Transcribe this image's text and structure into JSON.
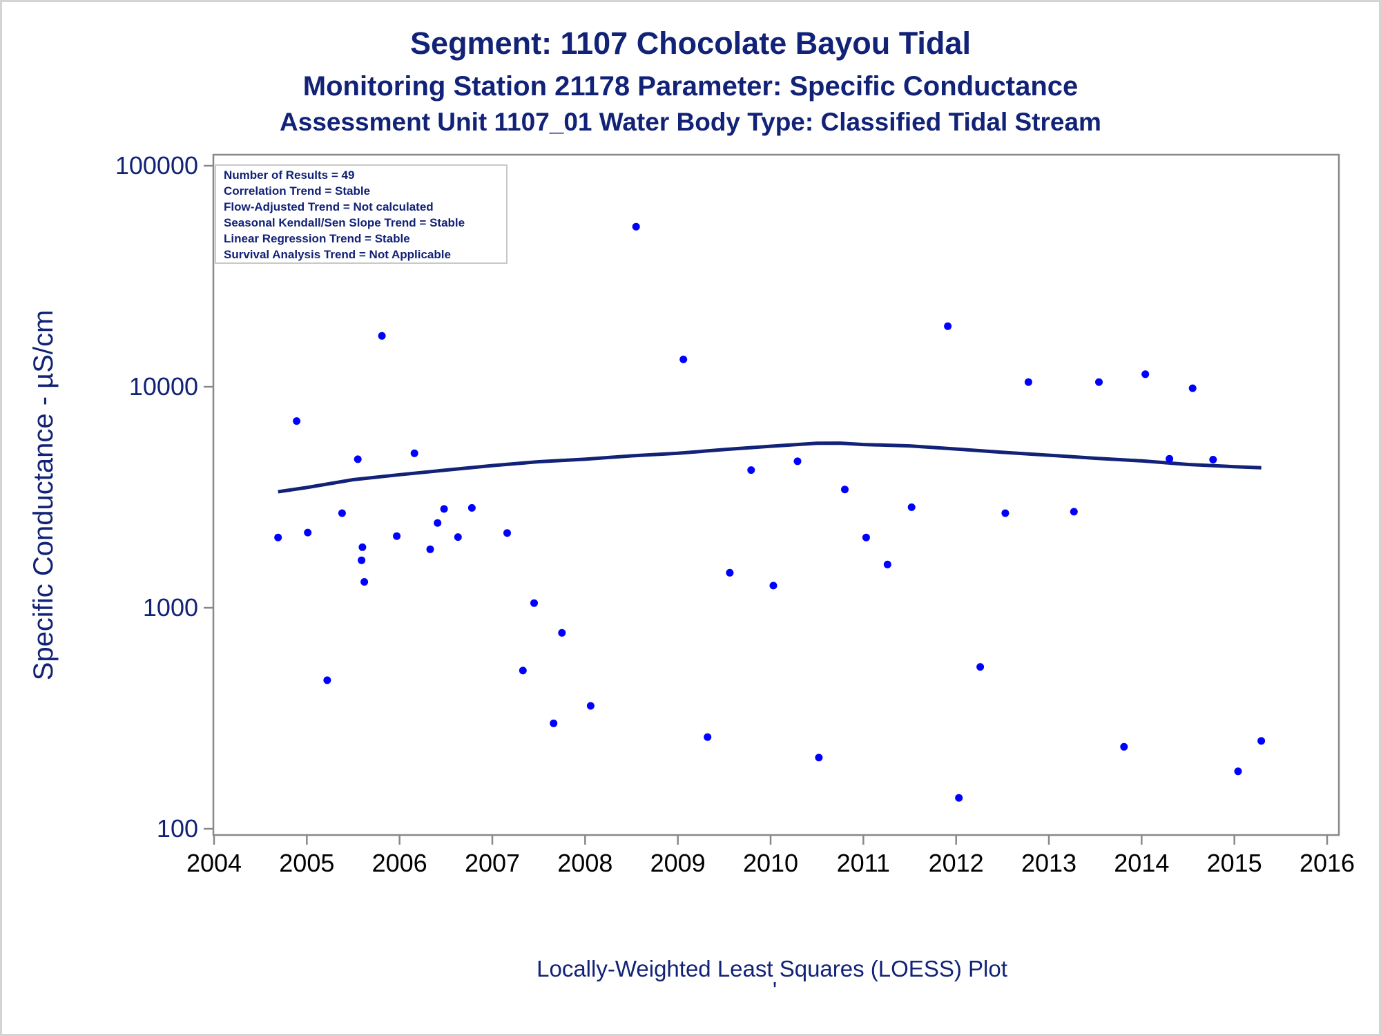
{
  "chart_data": {
    "type": "scatter",
    "title": "Segment: 1107  Chocolate Bayou Tidal",
    "subtitle": "Monitoring Station 21178 Parameter: Specific Conductance",
    "subtitle2": "Assessment Unit 1107_01   Water Body Type: Classified Tidal Stream",
    "ylabel": "Specific Conductance -  µS/cm",
    "footnote": "Locally-Weighted Least Squares (LOESS) Plot",
    "footnote2": "'",
    "y_scale": "log",
    "xlim": [
      2004,
      2016
    ],
    "ylim": [
      100,
      100000
    ],
    "x_ticks": [
      "2004",
      "2005",
      "2006",
      "2007",
      "2008",
      "2009",
      "2010",
      "2011",
      "2012",
      "2013",
      "2014",
      "2015",
      "2016"
    ],
    "y_ticks": [
      "100",
      "1000",
      "10000",
      "100000"
    ],
    "grid": false,
    "legend_placement": "none",
    "info_box": {
      "placement": "top-left",
      "lines": [
        "Number of Results = 49",
        "Correlation Trend = Stable",
        "Flow-Adjusted Trend = Not calculated",
        "Seasonal Kendall/Sen Slope Trend = Stable",
        "Linear Regression Trend = Stable",
        "Survival Analysis Trend = Not Applicable"
      ]
    },
    "colors": {
      "points": "#0000ff",
      "loess": "#112277",
      "text": "#112277",
      "axis": "#888888"
    },
    "points": [
      [
        2004.69,
        2080
      ],
      [
        2004.89,
        7000
      ],
      [
        2005.01,
        2190
      ],
      [
        2005.22,
        470
      ],
      [
        2005.38,
        2680
      ],
      [
        2005.55,
        4700
      ],
      [
        2005.59,
        1640
      ],
      [
        2005.6,
        1880
      ],
      [
        2005.62,
        1310
      ],
      [
        2005.81,
        17000
      ],
      [
        2005.97,
        2110
      ],
      [
        2006.16,
        5000
      ],
      [
        2006.33,
        1840
      ],
      [
        2006.41,
        2420
      ],
      [
        2006.48,
        2800
      ],
      [
        2006.63,
        2090
      ],
      [
        2006.78,
        2830
      ],
      [
        2007.16,
        2180
      ],
      [
        2007.33,
        520
      ],
      [
        2007.45,
        1050
      ],
      [
        2007.66,
        300
      ],
      [
        2007.75,
        770
      ],
      [
        2008.06,
        360
      ],
      [
        2008.55,
        53000
      ],
      [
        2009.06,
        13300
      ],
      [
        2009.32,
        260
      ],
      [
        2009.56,
        1440
      ],
      [
        2009.79,
        4200
      ],
      [
        2010.03,
        1260
      ],
      [
        2010.29,
        4600
      ],
      [
        2010.52,
        210
      ],
      [
        2010.8,
        3430
      ],
      [
        2011.03,
        2080
      ],
      [
        2011.26,
        1570
      ],
      [
        2011.52,
        2850
      ],
      [
        2011.91,
        18800
      ],
      [
        2012.03,
        138
      ],
      [
        2012.26,
        540
      ],
      [
        2012.53,
        2680
      ],
      [
        2012.78,
        10500
      ],
      [
        2013.27,
        2720
      ],
      [
        2013.54,
        10500
      ],
      [
        2013.81,
        235
      ],
      [
        2014.04,
        11400
      ],
      [
        2014.3,
        4720
      ],
      [
        2014.55,
        9850
      ],
      [
        2014.77,
        4680
      ],
      [
        2015.04,
        182
      ],
      [
        2015.29,
        250
      ]
    ],
    "loess": [
      [
        2004.69,
        3350
      ],
      [
        2005.0,
        3500
      ],
      [
        2005.5,
        3800
      ],
      [
        2006.0,
        4000
      ],
      [
        2006.5,
        4200
      ],
      [
        2007.0,
        4400
      ],
      [
        2007.5,
        4580
      ],
      [
        2008.0,
        4700
      ],
      [
        2008.5,
        4870
      ],
      [
        2009.0,
        5000
      ],
      [
        2009.5,
        5200
      ],
      [
        2010.0,
        5380
      ],
      [
        2010.5,
        5550
      ],
      [
        2010.75,
        5560
      ],
      [
        2011.0,
        5480
      ],
      [
        2011.5,
        5400
      ],
      [
        2012.0,
        5230
      ],
      [
        2012.5,
        5050
      ],
      [
        2013.0,
        4900
      ],
      [
        2013.5,
        4750
      ],
      [
        2014.0,
        4620
      ],
      [
        2014.5,
        4450
      ],
      [
        2015.0,
        4350
      ],
      [
        2015.29,
        4300
      ]
    ]
  }
}
